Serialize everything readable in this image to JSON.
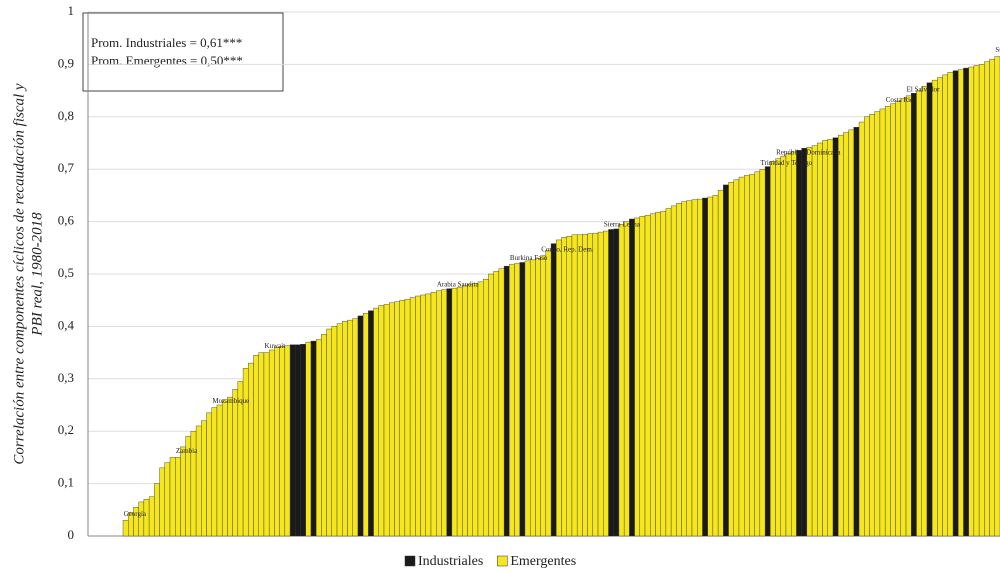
{
  "chart_data": {
    "type": "bar",
    "annotations": [
      "Prom. Industriales  = 0,61***",
      "Prom. Emergentes  = 0,50***"
    ],
    "y_label": [
      "Correlación entre componentes cíclicos de recaudación fiscal y",
      "PBI real, 1980-2018"
    ],
    "categories": [
      "Georgia",
      null,
      null,
      null,
      null,
      null,
      null,
      null,
      null,
      null,
      "Zambia",
      null,
      null,
      null,
      null,
      null,
      null,
      "Mozambique",
      null,
      null,
      null,
      null,
      null,
      null,
      null,
      null,
      null,
      "Kuwait",
      null,
      null,
      null,
      null,
      null,
      null,
      null,
      null,
      null,
      null,
      null,
      null,
      null,
      null,
      null,
      null,
      null,
      null,
      null,
      null,
      null,
      null,
      null,
      null,
      null,
      null,
      null,
      null,
      null,
      null,
      null,
      null,
      "Arabia Saudita",
      null,
      null,
      null,
      null,
      null,
      null,
      null,
      null,
      null,
      null,
      null,
      null,
      null,
      "Burkina Faso",
      null,
      null,
      null,
      null,
      null,
      "Congo, Rep. Dem.",
      null,
      null,
      null,
      null,
      null,
      null,
      null,
      null,
      null,
      null,
      null,
      "Sierra Leona",
      null,
      null,
      null,
      null,
      null,
      null,
      null,
      null,
      null,
      null,
      null,
      null,
      null,
      null,
      null,
      null,
      null,
      null,
      null,
      null,
      null,
      null,
      null,
      null,
      null,
      null,
      null,
      null,
      null,
      "Trinidad y Tobago",
      null,
      null,
      "República Dominicana",
      null,
      null,
      null,
      null,
      null,
      null,
      null,
      null,
      null,
      null,
      null,
      null,
      null,
      null,
      null,
      null,
      null,
      null,
      null,
      null,
      "Costa Rica",
      null,
      null,
      null,
      "El Salvador",
      null,
      null,
      null,
      null,
      null,
      null,
      null,
      null,
      null,
      null,
      null,
      null,
      null,
      null,
      null,
      null,
      "Sudáfrica"
    ],
    "series": [
      {
        "name": "Industriales",
        "color": "#1a1a1a",
        "values": [
          null,
          null,
          null,
          null,
          null,
          null,
          null,
          null,
          null,
          null,
          null,
          null,
          null,
          null,
          null,
          null,
          null,
          null,
          null,
          null,
          null,
          null,
          null,
          null,
          null,
          null,
          null,
          null,
          null,
          null,
          null,
          null,
          0.365,
          0.365,
          0.366,
          null,
          0.372,
          null,
          null,
          null,
          null,
          null,
          null,
          null,
          null,
          0.42,
          null,
          0.43,
          null,
          null,
          null,
          null,
          null,
          null,
          null,
          null,
          null,
          null,
          null,
          null,
          null,
          null,
          0.472,
          null,
          null,
          null,
          null,
          null,
          null,
          null,
          null,
          null,
          null,
          0.515,
          null,
          null,
          0.522,
          null,
          null,
          null,
          null,
          null,
          0.558,
          null,
          null,
          null,
          null,
          null,
          null,
          null,
          null,
          null,
          null,
          0.585,
          0.586,
          null,
          null,
          0.605,
          null,
          null,
          null,
          null,
          null,
          null,
          null,
          null,
          null,
          null,
          null,
          null,
          null,
          0.645,
          null,
          null,
          null,
          0.67,
          null,
          null,
          null,
          null,
          null,
          null,
          null,
          0.705,
          null,
          null,
          null,
          null,
          null,
          0.736,
          0.74,
          null,
          null,
          null,
          null,
          null,
          0.76,
          null,
          null,
          null,
          0.78,
          null,
          null,
          null,
          null,
          null,
          null,
          null,
          null,
          null,
          null,
          0.845,
          null,
          null,
          0.865,
          null,
          null,
          null,
          null,
          0.888,
          null,
          0.893,
          null,
          null,
          null,
          null,
          null,
          null
        ]
      },
      {
        "name": "Emergentes",
        "color": "#f5e61e",
        "values": [
          0.03,
          0.045,
          0.055,
          0.065,
          0.07,
          0.075,
          0.1,
          0.13,
          0.14,
          0.15,
          0.15,
          0.17,
          0.19,
          0.2,
          0.21,
          0.22,
          0.235,
          0.245,
          0.25,
          0.26,
          0.265,
          0.28,
          0.295,
          0.32,
          0.33,
          0.345,
          0.35,
          0.35,
          0.355,
          0.36,
          0.362,
          0.363,
          null,
          null,
          null,
          0.37,
          null,
          0.375,
          0.385,
          0.395,
          0.4,
          0.405,
          0.41,
          0.412,
          0.415,
          null,
          0.425,
          null,
          0.435,
          0.44,
          0.442,
          0.445,
          0.447,
          0.45,
          0.452,
          0.455,
          0.458,
          0.46,
          0.462,
          0.465,
          0.468,
          0.47,
          null,
          0.473,
          0.475,
          0.478,
          0.48,
          0.482,
          0.485,
          0.49,
          0.5,
          0.505,
          0.51,
          null,
          0.518,
          0.52,
          null,
          0.525,
          0.527,
          0.53,
          0.535,
          0.545,
          null,
          0.565,
          0.57,
          0.572,
          0.575,
          0.575,
          0.576,
          0.577,
          0.578,
          0.58,
          0.582,
          null,
          null,
          0.595,
          0.6,
          null,
          0.607,
          0.61,
          0.612,
          0.615,
          0.618,
          0.62,
          0.625,
          0.63,
          0.635,
          0.638,
          0.64,
          0.642,
          0.643,
          null,
          0.647,
          0.65,
          0.66,
          null,
          0.675,
          0.68,
          0.685,
          0.688,
          0.69,
          0.695,
          0.7,
          null,
          0.715,
          0.72,
          0.725,
          0.73,
          0.733,
          null,
          null,
          0.742,
          0.745,
          0.75,
          0.755,
          0.757,
          null,
          0.765,
          0.77,
          0.775,
          null,
          0.79,
          0.8,
          0.805,
          0.81,
          0.815,
          0.82,
          0.825,
          0.83,
          0.835,
          0.84,
          null,
          0.85,
          0.858,
          null,
          0.87,
          0.875,
          0.88,
          0.885,
          null,
          0.89,
          null,
          0.895,
          0.898,
          0.9,
          0.905,
          0.91,
          0.915
        ]
      }
    ],
    "ylim": [
      0,
      1
    ],
    "yticks": [
      0,
      {
        "value": 0.1,
        "label": "0,1"
      },
      {
        "value": 0.2,
        "label": "0,2"
      },
      {
        "value": 0.3,
        "label": "0,3"
      },
      {
        "value": 0.4,
        "label": "0,4"
      },
      {
        "value": 0.5,
        "label": "0,5"
      },
      {
        "value": 0.6,
        "label": "0,6"
      },
      {
        "value": 0.7,
        "label": "0,7"
      },
      {
        "value": 0.8,
        "label": "0,8"
      },
      {
        "value": 0.9,
        "label": "0,9"
      },
      1
    ],
    "grid": true,
    "legend": "bottom"
  }
}
